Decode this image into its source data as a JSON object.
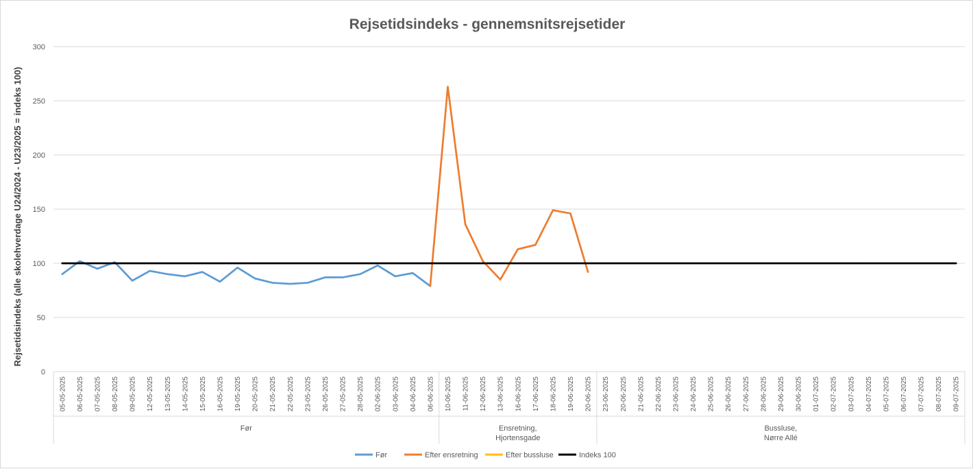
{
  "chart_data": {
    "type": "line",
    "title": "Rejsetidsindeks - gennemsnitsrejsetider",
    "xlabel": "",
    "ylabel": "Rejsetidsindeks (alle skolehverdage U24/2024 - U23/2025 = indeks 100)",
    "ylim": [
      0,
      300
    ],
    "yticks": [
      0,
      50,
      100,
      150,
      200,
      250,
      300
    ],
    "grid": true,
    "legend_position": "bottom",
    "categories": [
      "05-05-2025",
      "06-05-2025",
      "07-05-2025",
      "08-05-2025",
      "09-05-2025",
      "12-05-2025",
      "13-05-2025",
      "14-05-2025",
      "15-05-2025",
      "16-05-2025",
      "19-05-2025",
      "20-05-2025",
      "21-05-2025",
      "22-05-2025",
      "23-05-2025",
      "26-05-2025",
      "27-05-2025",
      "28-05-2025",
      "02-06-2025",
      "03-06-2025",
      "04-06-2025",
      "06-06-2025",
      "10-06-2025",
      "11-06-2025",
      "12-06-2025",
      "13-06-2025",
      "16-06-2025",
      "17-06-2025",
      "18-06-2025",
      "19-06-2025",
      "20-06-2025",
      "23-06-2025",
      "20-06-2025",
      "21-06-2025",
      "22-06-2025",
      "23-06-2025",
      "24-06-2025",
      "25-06-2025",
      "26-06-2025",
      "27-06-2025",
      "28-06-2025",
      "29-06-2025",
      "30-06-2025",
      "01-07-2025",
      "02-07-2025",
      "03-07-2025",
      "04-07-2025",
      "05-07-2025",
      "06-07-2025",
      "07-07-2025",
      "08-07-2025",
      "09-07-2025"
    ],
    "groups": [
      {
        "label": [
          "Før"
        ],
        "start": 0,
        "end": 21
      },
      {
        "label": [
          "Ensretning,",
          "Hjortensgade"
        ],
        "start": 22,
        "end": 30
      },
      {
        "label": [
          "Bussluse,",
          "Nørre Allé"
        ],
        "start": 31,
        "end": 51
      }
    ],
    "series": [
      {
        "name": "Før",
        "color": "#5b9bd5",
        "values": [
          90,
          102,
          95,
          101,
          84,
          93,
          90,
          88,
          92,
          83,
          96,
          86,
          82,
          81,
          82,
          87,
          87,
          90,
          98,
          88,
          91,
          79,
          null,
          null,
          null,
          null,
          null,
          null,
          null,
          null,
          null,
          null,
          null,
          null,
          null,
          null,
          null,
          null,
          null,
          null,
          null,
          null,
          null,
          null,
          null,
          null,
          null,
          null,
          null,
          null,
          null,
          null
        ]
      },
      {
        "name": "Efter ensretning",
        "color": "#ed7d31",
        "values": [
          null,
          null,
          null,
          null,
          null,
          null,
          null,
          null,
          null,
          null,
          null,
          null,
          null,
          null,
          null,
          null,
          null,
          null,
          null,
          null,
          null,
          79,
          263,
          136,
          102,
          85,
          113,
          117,
          149,
          146,
          92,
          null,
          null,
          null,
          null,
          null,
          null,
          null,
          null,
          null,
          null,
          null,
          null,
          null,
          null,
          null,
          null,
          null,
          null,
          null,
          null,
          null
        ]
      },
      {
        "name": "Efter bussluse",
        "color": "#ffc000",
        "values": [
          null,
          null,
          null,
          null,
          null,
          null,
          null,
          null,
          null,
          null,
          null,
          null,
          null,
          null,
          null,
          null,
          null,
          null,
          null,
          null,
          null,
          null,
          null,
          null,
          null,
          null,
          null,
          null,
          null,
          null,
          null,
          null,
          null,
          null,
          null,
          null,
          null,
          null,
          null,
          null,
          null,
          null,
          null,
          null,
          null,
          null,
          null,
          null,
          null,
          null,
          null,
          null
        ]
      },
      {
        "name": "Indeks 100",
        "color": "#000000",
        "values": [
          100,
          100,
          100,
          100,
          100,
          100,
          100,
          100,
          100,
          100,
          100,
          100,
          100,
          100,
          100,
          100,
          100,
          100,
          100,
          100,
          100,
          100,
          100,
          100,
          100,
          100,
          100,
          100,
          100,
          100,
          100,
          100,
          100,
          100,
          100,
          100,
          100,
          100,
          100,
          100,
          100,
          100,
          100,
          100,
          100,
          100,
          100,
          100,
          100,
          100,
          100,
          100
        ]
      }
    ]
  }
}
